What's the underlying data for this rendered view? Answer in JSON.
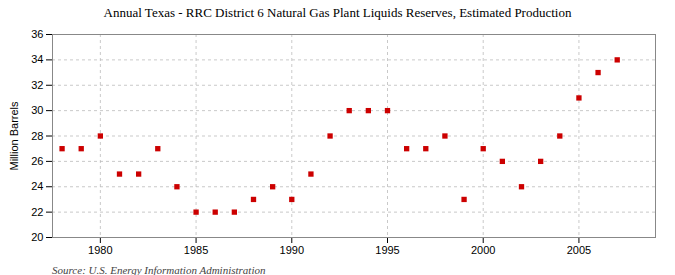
{
  "chart_data": {
    "type": "scatter",
    "title": "Annual Texas - RRC District 6 Natural Gas Plant Liquids Reserves, Estimated Production",
    "ylabel": "Million Barrels",
    "annotations": [
      "Source: U.S. Energy Information Administration"
    ],
    "color": "#cc0000",
    "marker": "square",
    "grid": true,
    "x": [
      1978,
      1979,
      1980,
      1981,
      1982,
      1983,
      1984,
      1985,
      1986,
      1987,
      1988,
      1989,
      1990,
      1991,
      1992,
      1993,
      1994,
      1995,
      1996,
      1997,
      1998,
      1999,
      2000,
      2001,
      2002,
      2003,
      2004,
      2005,
      2006,
      2007
    ],
    "values": [
      27,
      27,
      28,
      25,
      25,
      27,
      24,
      22,
      22,
      22,
      23,
      24,
      23,
      25,
      28,
      30,
      30,
      30,
      27,
      27,
      28,
      23,
      27,
      26,
      24,
      26,
      28,
      31,
      33,
      34
    ],
    "xlim": [
      1977.5,
      2009
    ],
    "ylim": [
      20,
      36
    ],
    "xticks": [
      1980,
      1985,
      1990,
      1995,
      2000,
      2005
    ],
    "yticks": [
      20,
      22,
      24,
      26,
      28,
      30,
      32,
      34,
      36
    ]
  }
}
